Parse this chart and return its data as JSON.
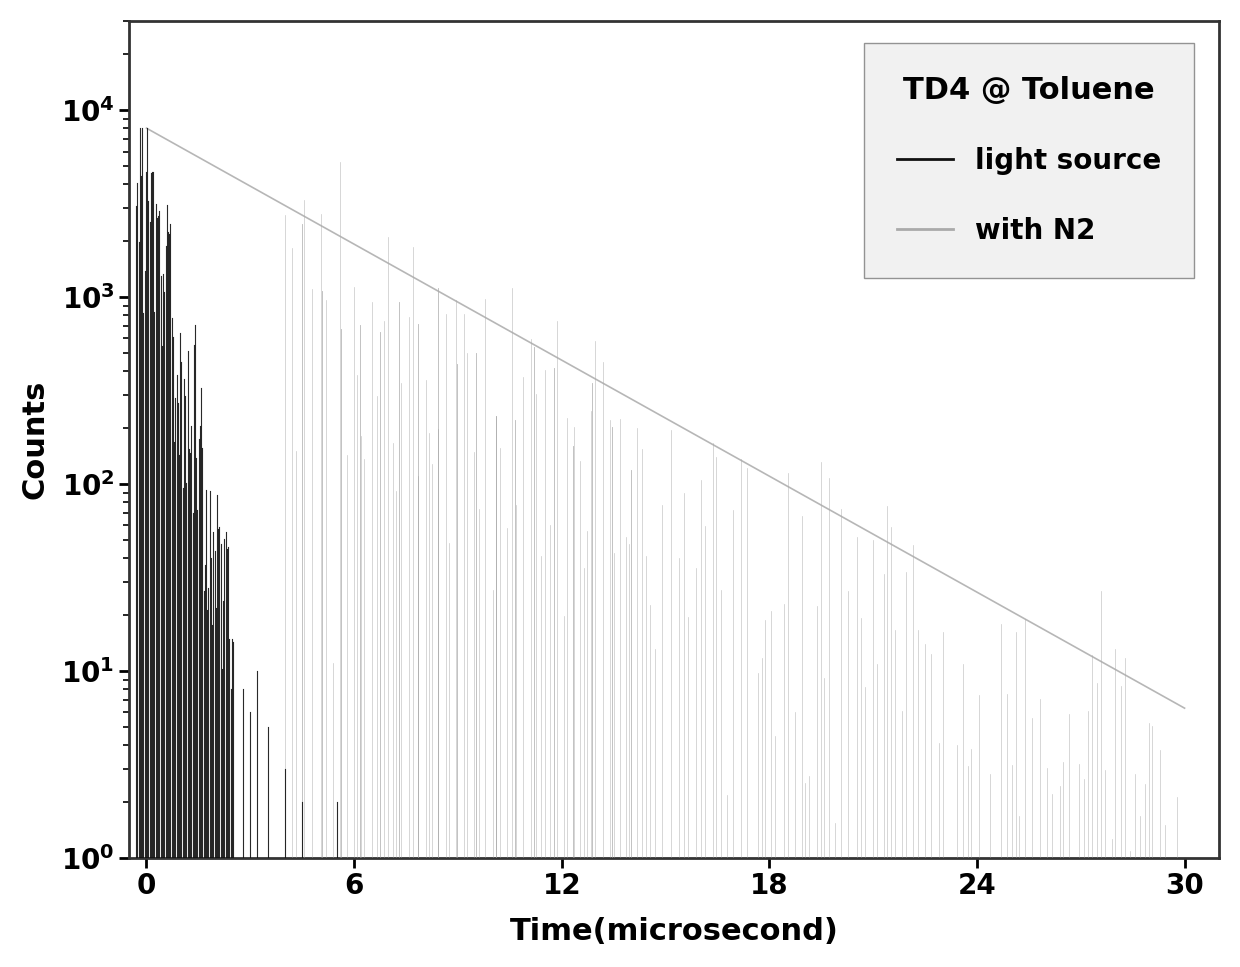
{
  "xlabel": "Time(microsecond)",
  "ylabel": "Counts",
  "xlim": [
    -0.5,
    31
  ],
  "ylim_bottom": 1,
  "ylim_top": 30000,
  "xticks": [
    0,
    6,
    12,
    18,
    24,
    30
  ],
  "background_color": "#ffffff",
  "plot_bg_color": "#ffffff",
  "legend_label_title": "TD4 @ Toluene",
  "legend_label_light": "light source",
  "legend_label_n2": "with N2",
  "light_source_color": "#111111",
  "n2_bar_color": "#999999",
  "n2_envelope_color": "#aaaaaa",
  "tick_fontsize": 20,
  "label_fontsize": 22,
  "legend_fontsize": 20,
  "n2_decay_tau": 4.2,
  "n2_peak_y": 8000,
  "light_decay_tau": 0.45,
  "light_peak_y": 8000,
  "seed": 12
}
